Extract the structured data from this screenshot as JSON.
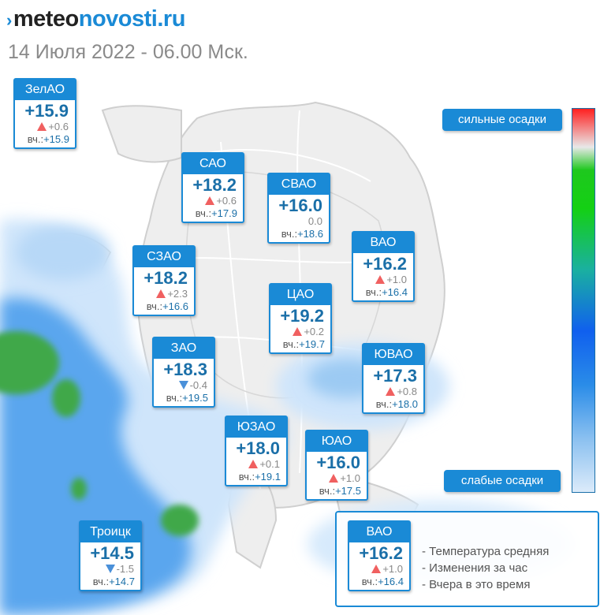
{
  "logo": {
    "arrow": "›",
    "part1": "meteo",
    "part2": "novosti.ru"
  },
  "date_text": "14 Июля 2022 - 06.00 Мск.",
  "yesterday_label": "вч.:",
  "districts": [
    {
      "name": "ЗелАО",
      "temp": "+15.9",
      "trend": "up",
      "change": "+0.6",
      "yesterday": "+15.9"
    },
    {
      "name": "САО",
      "temp": "+18.2",
      "trend": "up",
      "change": "+0.6",
      "yesterday": "+17.9"
    },
    {
      "name": "СВАО",
      "temp": "+16.0",
      "trend": "none",
      "change": "0.0",
      "yesterday": "+18.6"
    },
    {
      "name": "ВАО",
      "temp": "+16.2",
      "trend": "up",
      "change": "+1.0",
      "yesterday": "+16.4"
    },
    {
      "name": "СЗАО",
      "temp": "+18.2",
      "trend": "up",
      "change": "+2.3",
      "yesterday": "+16.6"
    },
    {
      "name": "ЦАО",
      "temp": "+19.2",
      "trend": "up",
      "change": "+0.2",
      "yesterday": "+19.7"
    },
    {
      "name": "ЗАО",
      "temp": "+18.3",
      "trend": "down",
      "change": "-0.4",
      "yesterday": "+19.5"
    },
    {
      "name": "ЮВАО",
      "temp": "+17.3",
      "trend": "up",
      "change": "+0.8",
      "yesterday": "+18.0"
    },
    {
      "name": "ЮЗАО",
      "temp": "+18.0",
      "trend": "up",
      "change": "+0.1",
      "yesterday": "+19.1"
    },
    {
      "name": "ЮАО",
      "temp": "+16.0",
      "trend": "up",
      "change": "+1.0",
      "yesterday": "+17.5"
    },
    {
      "name": "Троицк",
      "temp": "+14.5",
      "trend": "down",
      "change": "-1.5",
      "yesterday": "+14.7"
    }
  ],
  "precip_scale": {
    "top_label": "сильные осадки",
    "bottom_label": "слабые осадки"
  },
  "legend": {
    "example": {
      "name": "ВАО",
      "temp": "+16.2",
      "trend": "up",
      "change": "+1.0",
      "yesterday": "+16.4"
    },
    "lines": [
      "- Температура средняя",
      "- Изменения за час",
      "- Вчера в это время"
    ]
  },
  "colors": {
    "accent": "#1a8ad6",
    "temp_text": "#1a6fa8",
    "up": "#f06060",
    "down": "#4a90d9",
    "precip_light": "#cfe5fb",
    "precip_mid": "#5aa6ee",
    "precip_heavy": "#3fa84a"
  }
}
